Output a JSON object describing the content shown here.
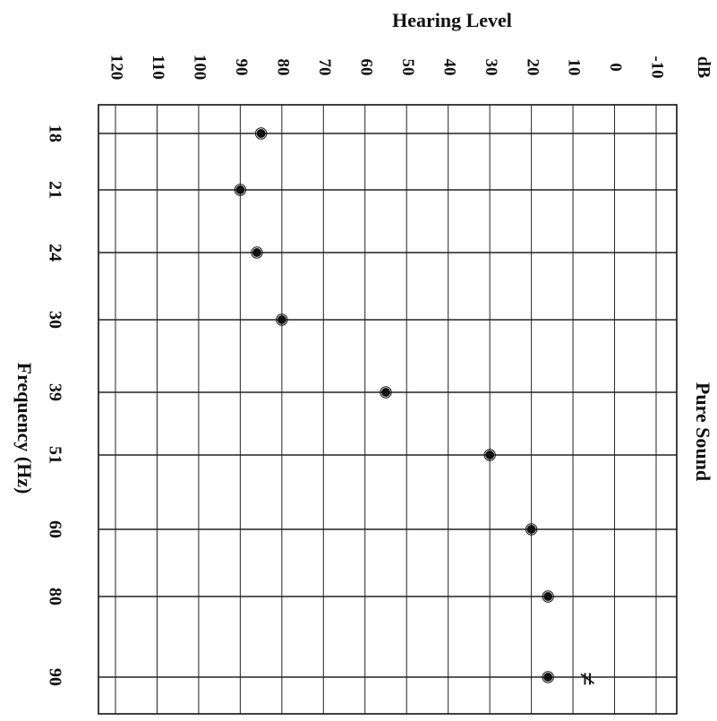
{
  "chart_data": {
    "type": "scatter",
    "title": "Hearing Level",
    "subtitle": "Pure Sound",
    "xlabel": "Frequency (Hz)",
    "ylabel": "Hearing Level",
    "unit": "dB",
    "x": [
      "18",
      "21",
      "24",
      "30",
      "39",
      "51",
      "60",
      "80",
      "90"
    ],
    "ylim": [
      -10,
      120
    ],
    "ytick_labels": [
      "-10",
      "0",
      "10",
      "20",
      "30",
      "40",
      "50",
      "60",
      "70",
      "80",
      "90",
      "100",
      "110",
      "120"
    ],
    "series": [
      {
        "values": [
          85,
          90,
          86,
          80,
          55,
          30,
          20,
          16,
          16
        ]
      }
    ],
    "grid": true,
    "annotation_mark": "≠",
    "colors": {
      "ink": "#111111",
      "grid": "#222222",
      "background": "#ffffff"
    }
  }
}
